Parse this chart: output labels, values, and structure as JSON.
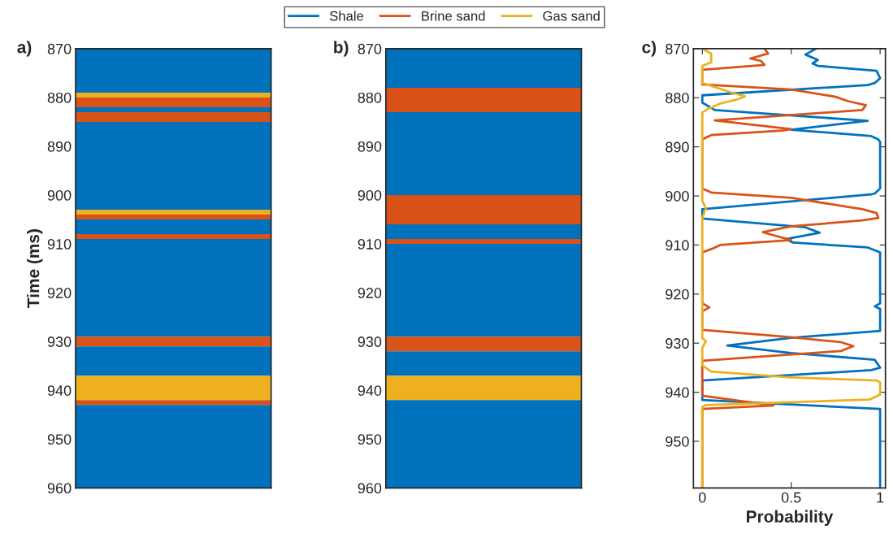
{
  "chart_data": [
    {
      "type": "bar",
      "title": "a)",
      "ylabel": "Time (ms)",
      "categories": [
        null
      ],
      "ylim": [
        960,
        870
      ],
      "yticks": [
        870,
        880,
        890,
        900,
        910,
        920,
        930,
        940,
        950,
        960
      ],
      "tick_labels": "y",
      "grid": false,
      "legend": false,
      "series": [
        {
          "color": "#0072bd",
          "base": [
            870
          ],
          "values": [
            9
          ]
        },
        {
          "color": "#edb120",
          "base": [
            879
          ],
          "values": [
            1
          ]
        },
        {
          "color": "#d95319",
          "base": [
            880
          ],
          "values": [
            2
          ]
        },
        {
          "color": "#0072bd",
          "base": [
            882
          ],
          "values": [
            1
          ]
        },
        {
          "color": "#d95319",
          "base": [
            883
          ],
          "values": [
            2
          ]
        },
        {
          "color": "#0072bd",
          "base": [
            885
          ],
          "values": [
            18
          ]
        },
        {
          "color": "#edb120",
          "base": [
            903
          ],
          "values": [
            1
          ]
        },
        {
          "color": "#d95319",
          "base": [
            904
          ],
          "values": [
            1
          ]
        },
        {
          "color": "#0072bd",
          "base": [
            905
          ],
          "values": [
            3
          ]
        },
        {
          "color": "#d95319",
          "base": [
            908
          ],
          "values": [
            1
          ]
        },
        {
          "color": "#0072bd",
          "base": [
            909
          ],
          "values": [
            20
          ]
        },
        {
          "color": "#d95319",
          "base": [
            929
          ],
          "values": [
            2
          ]
        },
        {
          "color": "#0072bd",
          "base": [
            931
          ],
          "values": [
            6
          ]
        },
        {
          "color": "#edb120",
          "base": [
            937
          ],
          "values": [
            5
          ]
        },
        {
          "color": "#d95319",
          "base": [
            942
          ],
          "values": [
            1
          ]
        },
        {
          "color": "#0072bd",
          "base": [
            943
          ],
          "values": [
            17
          ]
        }
      ]
    },
    {
      "type": "bar",
      "title": "b)",
      "categories": [
        null
      ],
      "ylim": [
        960,
        870
      ],
      "yticks": [
        870,
        880,
        890,
        900,
        910,
        920,
        930,
        940,
        950,
        960
      ],
      "tick_labels": "y",
      "grid": false,
      "legend": false,
      "series": [
        {
          "color": "#0072bd",
          "base": [
            870
          ],
          "values": [
            8
          ]
        },
        {
          "color": "#d95319",
          "base": [
            878
          ],
          "values": [
            5
          ]
        },
        {
          "color": "#0072bd",
          "base": [
            883
          ],
          "values": [
            17
          ]
        },
        {
          "color": "#d95319",
          "base": [
            900
          ],
          "values": [
            6
          ]
        },
        {
          "color": "#0072bd",
          "base": [
            906
          ],
          "values": [
            3
          ]
        },
        {
          "color": "#d95319",
          "base": [
            909
          ],
          "values": [
            1
          ]
        },
        {
          "color": "#0072bd",
          "base": [
            910
          ],
          "values": [
            19
          ]
        },
        {
          "color": "#d95319",
          "base": [
            929
          ],
          "values": [
            3
          ]
        },
        {
          "color": "#0072bd",
          "base": [
            932
          ],
          "values": [
            5
          ]
        },
        {
          "color": "#edb120",
          "base": [
            937
          ],
          "values": [
            5
          ]
        },
        {
          "color": "#0072bd",
          "base": [
            942
          ],
          "values": [
            18
          ]
        }
      ]
    },
    {
      "type": "line",
      "title": "c)",
      "xlabel": "Probability",
      "xlim": [
        -0.05,
        1.03
      ],
      "xticks": [
        0,
        0.5,
        1
      ],
      "ylim": [
        959.5,
        870
      ],
      "yticks": [
        870,
        880,
        890,
        900,
        910,
        920,
        930,
        940,
        950
      ],
      "grid": false,
      "legend": "top",
      "marker": "none",
      "line_style": "solid",
      "series": [
        {
          "name": "Shale",
          "color": "#0072bd",
          "x": [
            0.64,
            0.58,
            0.65,
            0.62,
            0.65,
            0.98,
            1.0,
            0.97,
            0.93,
            0.0,
            0.0,
            0.07,
            0.93,
            0.5,
            0.95,
            0.99,
            1.0,
            1.0,
            0.97,
            0.95,
            0.0,
            0.0,
            0.58,
            0.66,
            0.47,
            0.51,
            0.93,
            1.0,
            1.0,
            0.97,
            1.0,
            1.0,
            0.5,
            0.14,
            0.5,
            0.97,
            1.0,
            0.95,
            0.0,
            0.0,
            1.0,
            1.0
          ],
          "values": [
            870,
            871.2,
            872.3,
            873,
            873.5,
            874.5,
            876,
            877,
            877.4,
            879.5,
            881,
            882.5,
            884.7,
            886.5,
            887.8,
            888.5,
            889,
            898.5,
            899.5,
            899.7,
            902.7,
            904.6,
            906.4,
            907.5,
            908.8,
            909.5,
            910.5,
            911.5,
            921.9,
            922.5,
            923,
            927.5,
            928.9,
            930.5,
            932,
            933.4,
            935,
            935.5,
            937.6,
            941.6,
            943.4,
            959.5
          ]
        },
        {
          "name": "Brine sand",
          "color": "#d95319",
          "x": [
            0.35,
            0.37,
            0.27,
            0.33,
            0.35,
            0.0,
            0.0,
            0.5,
            0.75,
            0.82,
            0.92,
            0.9,
            0.07,
            0.5,
            0.45,
            0.05,
            0.0,
            0.0,
            0.05,
            0.5,
            0.9,
            0.98,
            0.99,
            0.9,
            0.5,
            0.34,
            0.5,
            0.1,
            0.06,
            0.0,
            0.0,
            0.04,
            0.0,
            0.0,
            0.5,
            0.78,
            0.85,
            0.78,
            0.5,
            0.0,
            0.0,
            0.4,
            0.0,
            0.0
          ],
          "values": [
            870,
            871,
            872,
            872.5,
            873.3,
            874.3,
            877.3,
            878.3,
            879.8,
            880.7,
            881.5,
            882.5,
            884.6,
            886.4,
            886.7,
            887.6,
            888.5,
            898.5,
            899.3,
            900.4,
            902.7,
            903.5,
            904.5,
            905,
            906.2,
            907.4,
            909,
            910,
            910.7,
            911.5,
            921.9,
            922.7,
            923.5,
            927.3,
            928.8,
            929.8,
            930.6,
            931.6,
            932.3,
            933.6,
            940.7,
            942.7,
            943.4,
            959.5
          ]
        },
        {
          "name": "Gas sand",
          "color": "#edb120",
          "x": [
            0.0,
            0.05,
            0.05,
            0.0,
            0.0,
            0.17,
            0.24,
            0.2,
            0.1,
            0.03,
            0.0,
            0.0,
            0.02,
            0.0,
            0.0,
            0.02,
            0.0,
            0.0,
            0.05,
            0.5,
            0.98,
            1.0,
            1.0,
            0.94,
            0.02,
            0.0,
            0.0
          ],
          "values": [
            870,
            871,
            872.8,
            873.5,
            877,
            879,
            879.7,
            880.3,
            881.2,
            882.3,
            883,
            901,
            902.5,
            904.5,
            929,
            929.6,
            931,
            934.5,
            935.8,
            937,
            937.6,
            938,
            940.5,
            941.5,
            942.6,
            943,
            959.5
          ]
        }
      ]
    }
  ]
}
